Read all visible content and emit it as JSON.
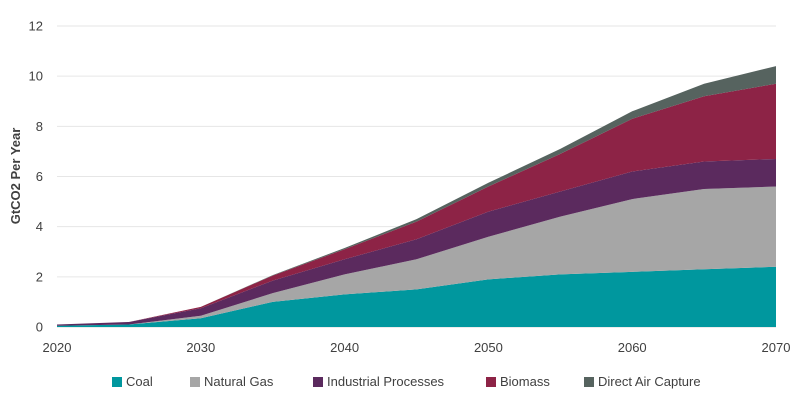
{
  "chart_data": {
    "type": "area",
    "stacked": true,
    "title": "",
    "xlabel": "",
    "ylabel": "GtCO2 Per Year",
    "x": [
      2020,
      2025,
      2030,
      2035,
      2040,
      2045,
      2050,
      2055,
      2060,
      2065,
      2070
    ],
    "xticks": [
      "2020",
      "2030",
      "2040",
      "2050",
      "2060",
      "2070"
    ],
    "yticks": [
      "0",
      "2",
      "4",
      "6",
      "8",
      "10",
      "12"
    ],
    "xlim": [
      2020,
      2070
    ],
    "ylim": [
      0,
      12
    ],
    "grid": true,
    "legend_position": "bottom",
    "series": [
      {
        "name": "Coal",
        "color": "#00979e",
        "values": [
          0.05,
          0.1,
          0.35,
          1.0,
          1.3,
          1.5,
          1.9,
          2.1,
          2.2,
          2.3,
          2.4
        ]
      },
      {
        "name": "Natural Gas",
        "color": "#a6a6a6",
        "values": [
          0.0,
          0.0,
          0.1,
          0.35,
          0.8,
          1.2,
          1.7,
          2.3,
          2.9,
          3.2,
          3.2
        ]
      },
      {
        "name": "Industrial Processes",
        "color": "#5b2a5e",
        "values": [
          0.05,
          0.1,
          0.3,
          0.5,
          0.6,
          0.8,
          1.0,
          1.0,
          1.1,
          1.1,
          1.1
        ]
      },
      {
        "name": "Biomass",
        "color": "#8d2346",
        "values": [
          0.0,
          0.0,
          0.05,
          0.2,
          0.4,
          0.7,
          1.0,
          1.5,
          2.1,
          2.6,
          3.0
        ]
      },
      {
        "name": "Direct Air Capture",
        "color": "#56635f",
        "values": [
          0.0,
          0.0,
          0.0,
          0.02,
          0.05,
          0.1,
          0.15,
          0.2,
          0.3,
          0.5,
          0.7
        ]
      }
    ]
  }
}
